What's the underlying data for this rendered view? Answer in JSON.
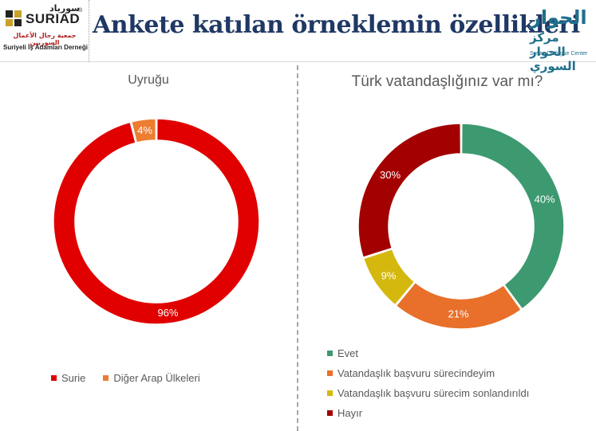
{
  "header": {
    "title": "Anketе katılan örneklemin özellikleri",
    "logo_left": {
      "brand": "SURIAD",
      "brand_ar": "سورياد",
      "subtitle_ar": "جمعية رجال الأعمال السوريين",
      "subtitle_tr": "Suriyeli İş Adamları Derneği"
    },
    "logo_right": {
      "line1_ar": "الحوار",
      "line2_ar": "مركز الحوار السوري",
      "name_en": "Syrian Dialogue Center"
    }
  },
  "chart_data": [
    {
      "type": "pie",
      "donut": true,
      "title": "Uyruğu",
      "slices": [
        {
          "label": "Surie",
          "value": 96,
          "display": "96%",
          "color": "#e00000"
        },
        {
          "label": "Diğer Arap Ülkeleri",
          "value": 4,
          "display": "4%",
          "color": "#ed7d31"
        }
      ],
      "legend_position": "bottom"
    },
    {
      "type": "pie",
      "donut": true,
      "title": "Türk vatandaşlığınız var mı?",
      "slices": [
        {
          "label": "Evet",
          "value": 40,
          "display": "40%",
          "color": "#3d9970"
        },
        {
          "label": "Vatandaşlık başvuru sürecindeyim",
          "value": 21,
          "display": "21%",
          "color": "#e8702a"
        },
        {
          "label": "Vatandaşlık başvuru sürecim sonlandırıldı",
          "value": 9,
          "display": "9%",
          "color": "#d4b80e"
        },
        {
          "label": "Hayır",
          "value": 30,
          "display": "30%",
          "color": "#a30000"
        }
      ],
      "legend_position": "bottom-left"
    }
  ]
}
